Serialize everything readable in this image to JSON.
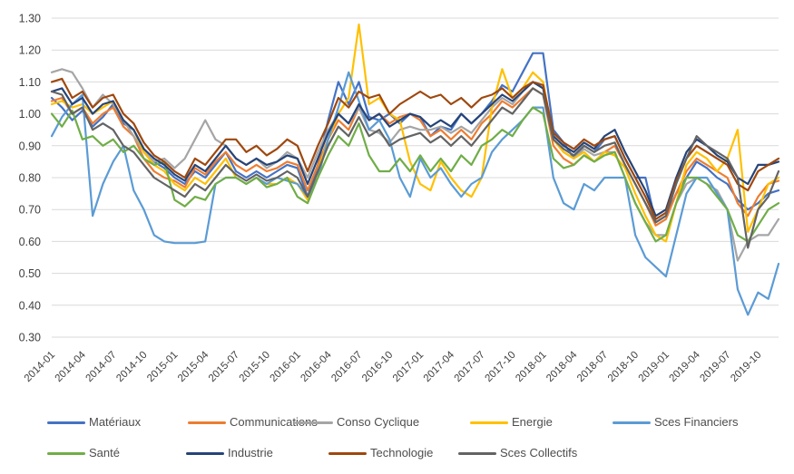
{
  "chart_data": {
    "type": "line",
    "title": "",
    "xlabel": "",
    "ylabel": "",
    "ylim": [
      0.3,
      1.3
    ],
    "grid": "horizontal-only",
    "gridline_color": "#d9d9d9",
    "axis_text_color": "#404040",
    "legend_position": "bottom",
    "y_tick_labels": [
      "1.30",
      "1.20",
      "1.10",
      "1.00",
      "0.90",
      "0.80",
      "0.70",
      "0.60",
      "0.50",
      "0.40",
      "0.30"
    ],
    "x_tick_labels": [
      "2014-01",
      "2014-04",
      "2014-07",
      "2014-10",
      "2015-01",
      "2015-04",
      "2015-07",
      "2015-10",
      "2016-01",
      "2016-04",
      "2016-07",
      "2016-10",
      "2017-01",
      "2017-04",
      "2017-07",
      "2017-10",
      "2018-01",
      "2018-04",
      "2018-07",
      "2018-10",
      "2019-01",
      "2019-04",
      "2019-07",
      "2019-10"
    ],
    "x_start": "2014-01",
    "x_points_monthly": 72,
    "series": [
      {
        "name": "Matériaux",
        "color": "#4472C4",
        "values": [
          1.05,
          1.02,
          0.98,
          1.01,
          0.96,
          0.99,
          1.03,
          0.97,
          0.95,
          0.88,
          0.85,
          0.83,
          0.8,
          0.78,
          0.82,
          0.8,
          0.84,
          0.88,
          0.82,
          0.8,
          0.82,
          0.8,
          0.82,
          0.84,
          0.83,
          0.74,
          0.84,
          0.98,
          1.1,
          1.03,
          1.1,
          0.99,
          0.98,
          1.0,
          0.97,
          1.0,
          0.99,
          0.93,
          0.96,
          0.95,
          1.0,
          0.97,
          1.0,
          1.04,
          1.09,
          1.07,
          1.13,
          1.19,
          1.19,
          0.95,
          0.91,
          0.86,
          0.9,
          0.88,
          0.92,
          0.93,
          0.86,
          0.8,
          0.8,
          0.66,
          0.68,
          0.75,
          0.8,
          0.85,
          0.83,
          0.8,
          0.78,
          0.73,
          0.7,
          0.72,
          0.75,
          0.76
        ]
      },
      {
        "name": "Communications",
        "color": "#ED7D31",
        "values": [
          1.04,
          1.05,
          1.0,
          1.02,
          0.97,
          1.0,
          1.02,
          0.96,
          0.93,
          0.86,
          0.82,
          0.8,
          0.79,
          0.77,
          0.83,
          0.81,
          0.85,
          0.88,
          0.84,
          0.82,
          0.84,
          0.82,
          0.83,
          0.85,
          0.84,
          0.76,
          0.84,
          0.92,
          0.98,
          0.95,
          1.02,
          0.98,
          1.0,
          0.97,
          0.99,
          1.0,
          0.98,
          0.93,
          0.95,
          0.92,
          0.95,
          0.92,
          0.97,
          1.0,
          1.04,
          1.02,
          1.05,
          1.08,
          1.06,
          0.9,
          0.86,
          0.84,
          0.87,
          0.85,
          0.88,
          0.9,
          0.84,
          0.78,
          0.72,
          0.65,
          0.67,
          0.75,
          0.82,
          0.86,
          0.84,
          0.82,
          0.8,
          0.72,
          0.68,
          0.74,
          0.78,
          0.79
        ]
      },
      {
        "name": "Conso Cyclique",
        "color": "#A5A5A5",
        "values": [
          1.13,
          1.14,
          1.13,
          1.08,
          1.02,
          1.06,
          1.03,
          0.98,
          0.93,
          0.88,
          0.85,
          0.86,
          0.83,
          0.86,
          0.92,
          0.98,
          0.92,
          0.9,
          0.86,
          0.84,
          0.86,
          0.83,
          0.85,
          0.88,
          0.86,
          0.8,
          0.88,
          0.95,
          1.0,
          0.97,
          1.02,
          0.95,
          0.94,
          0.91,
          0.95,
          0.96,
          0.95,
          0.95,
          0.96,
          0.94,
          0.96,
          0.94,
          0.98,
          1.02,
          1.05,
          1.03,
          1.07,
          1.1,
          1.08,
          0.92,
          0.88,
          0.86,
          0.89,
          0.87,
          0.88,
          0.88,
          0.8,
          0.72,
          0.66,
          0.62,
          0.62,
          0.72,
          0.78,
          0.8,
          0.78,
          0.76,
          0.7,
          0.54,
          0.6,
          0.62,
          0.62,
          0.67
        ]
      },
      {
        "name": "Energie",
        "color": "#FFC000",
        "values": [
          1.03,
          1.04,
          1.02,
          1.03,
          1.0,
          1.02,
          1.04,
          0.98,
          0.95,
          0.88,
          0.84,
          0.82,
          0.78,
          0.76,
          0.8,
          0.78,
          0.82,
          0.86,
          0.8,
          0.78,
          0.8,
          0.78,
          0.78,
          0.8,
          0.78,
          0.73,
          0.82,
          0.92,
          1.0,
          1.05,
          1.28,
          1.03,
          1.05,
          1.0,
          0.98,
          0.85,
          0.78,
          0.76,
          0.85,
          0.8,
          0.76,
          0.74,
          0.8,
          1.02,
          1.14,
          1.05,
          1.08,
          1.13,
          1.1,
          0.92,
          0.88,
          0.86,
          0.88,
          0.85,
          0.88,
          0.87,
          0.83,
          0.75,
          0.68,
          0.62,
          0.6,
          0.72,
          0.84,
          0.88,
          0.86,
          0.82,
          0.86,
          0.95,
          0.63,
          0.7,
          0.78,
          0.8
        ]
      },
      {
        "name": "Sces Financiers",
        "color": "#5B9BD5",
        "values": [
          0.93,
          0.99,
          1.03,
          1.06,
          0.68,
          0.78,
          0.85,
          0.9,
          0.76,
          0.7,
          0.62,
          0.6,
          0.595,
          0.595,
          0.595,
          0.6,
          0.78,
          0.8,
          0.8,
          0.78,
          0.8,
          0.78,
          0.8,
          0.79,
          0.78,
          0.74,
          0.8,
          0.92,
          1.02,
          1.13,
          1.04,
          0.95,
          0.98,
          0.92,
          0.8,
          0.74,
          0.86,
          0.8,
          0.83,
          0.78,
          0.74,
          0.78,
          0.8,
          0.88,
          0.92,
          0.95,
          0.98,
          1.02,
          1.02,
          0.8,
          0.72,
          0.7,
          0.78,
          0.76,
          0.8,
          0.8,
          0.8,
          0.62,
          0.55,
          0.52,
          0.49,
          0.62,
          0.75,
          0.8,
          0.8,
          0.75,
          0.7,
          0.45,
          0.37,
          0.44,
          0.42,
          0.53
        ]
      },
      {
        "name": "Santé",
        "color": "#70AD47",
        "values": [
          1.0,
          0.96,
          1.01,
          0.92,
          0.93,
          0.9,
          0.92,
          0.88,
          0.9,
          0.86,
          0.84,
          0.85,
          0.73,
          0.71,
          0.74,
          0.73,
          0.78,
          0.8,
          0.8,
          0.78,
          0.8,
          0.77,
          0.78,
          0.8,
          0.74,
          0.72,
          0.8,
          0.87,
          0.93,
          0.9,
          0.97,
          0.87,
          0.82,
          0.82,
          0.86,
          0.82,
          0.87,
          0.82,
          0.86,
          0.82,
          0.87,
          0.84,
          0.9,
          0.92,
          0.95,
          0.93,
          0.98,
          1.02,
          1.0,
          0.86,
          0.83,
          0.84,
          0.87,
          0.85,
          0.87,
          0.88,
          0.8,
          0.72,
          0.66,
          0.6,
          0.62,
          0.72,
          0.8,
          0.8,
          0.78,
          0.74,
          0.7,
          0.62,
          0.6,
          0.65,
          0.7,
          0.72
        ]
      },
      {
        "name": "Industrie",
        "color": "#264478",
        "values": [
          1.07,
          1.08,
          1.03,
          1.05,
          1.0,
          1.03,
          1.04,
          0.98,
          0.95,
          0.89,
          0.86,
          0.84,
          0.81,
          0.79,
          0.84,
          0.82,
          0.86,
          0.9,
          0.86,
          0.84,
          0.86,
          0.84,
          0.85,
          0.87,
          0.86,
          0.78,
          0.86,
          0.94,
          1.0,
          0.97,
          1.03,
          0.98,
          1.0,
          0.96,
          0.98,
          1.0,
          0.99,
          0.96,
          0.98,
          0.96,
          1.0,
          0.97,
          1.0,
          1.03,
          1.06,
          1.04,
          1.07,
          1.1,
          1.08,
          0.93,
          0.9,
          0.88,
          0.91,
          0.89,
          0.93,
          0.95,
          0.88,
          0.82,
          0.76,
          0.68,
          0.7,
          0.8,
          0.88,
          0.92,
          0.9,
          0.87,
          0.85,
          0.8,
          0.78,
          0.84,
          0.84,
          0.85
        ]
      },
      {
        "name": "Technologie",
        "color": "#9E480E",
        "values": [
          1.1,
          1.11,
          1.05,
          1.07,
          1.02,
          1.05,
          1.06,
          1.0,
          0.97,
          0.91,
          0.87,
          0.85,
          0.82,
          0.8,
          0.86,
          0.84,
          0.88,
          0.92,
          0.92,
          0.88,
          0.9,
          0.87,
          0.89,
          0.92,
          0.9,
          0.82,
          0.9,
          0.97,
          1.05,
          1.02,
          1.07,
          1.05,
          1.06,
          1.0,
          1.03,
          1.05,
          1.07,
          1.05,
          1.06,
          1.03,
          1.05,
          1.02,
          1.05,
          1.06,
          1.08,
          1.05,
          1.08,
          1.1,
          1.09,
          0.94,
          0.91,
          0.89,
          0.92,
          0.9,
          0.92,
          0.93,
          0.86,
          0.8,
          0.74,
          0.67,
          0.69,
          0.79,
          0.86,
          0.9,
          0.88,
          0.86,
          0.84,
          0.78,
          0.76,
          0.82,
          0.84,
          0.86
        ]
      },
      {
        "name": "Sces Collectifs",
        "color": "#636363",
        "values": [
          1.07,
          1.06,
          1.0,
          1.02,
          0.95,
          0.97,
          0.95,
          0.9,
          0.88,
          0.84,
          0.8,
          0.78,
          0.76,
          0.74,
          0.78,
          0.76,
          0.8,
          0.84,
          0.81,
          0.79,
          0.81,
          0.79,
          0.8,
          0.82,
          0.8,
          0.74,
          0.82,
          0.9,
          0.96,
          0.93,
          0.99,
          0.93,
          0.95,
          0.9,
          0.92,
          0.93,
          0.94,
          0.91,
          0.93,
          0.9,
          0.93,
          0.9,
          0.94,
          0.98,
          1.02,
          1.0,
          1.04,
          1.08,
          1.06,
          0.92,
          0.89,
          0.87,
          0.9,
          0.88,
          0.9,
          0.91,
          0.84,
          0.78,
          0.72,
          0.66,
          0.68,
          0.78,
          0.86,
          0.93,
          0.9,
          0.88,
          0.86,
          0.8,
          0.58,
          0.7,
          0.74,
          0.82
        ]
      }
    ]
  },
  "legend": {
    "row1": [
      "Matériaux",
      "Communications",
      "Conso Cyclique",
      "Energie",
      "Sces Financiers"
    ],
    "row2": [
      "Santé",
      "Industrie",
      "Technologie",
      "Sces Collectifs"
    ]
  }
}
